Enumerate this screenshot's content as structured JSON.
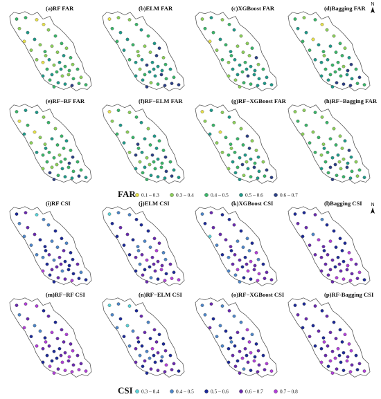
{
  "north_letter": "N",
  "region_outline_color": "#555555",
  "dot_stroke_color": "#444444",
  "far": {
    "legend_title": "FAR",
    "classes": [
      {
        "label": "0.1 – 0.3",
        "color": "#e8e24a"
      },
      {
        "label": "0.3 – 0.4",
        "color": "#8cd05a"
      },
      {
        "label": "0.4 – 0.5",
        "color": "#3ab66a"
      },
      {
        "label": "0.5 – 0.6",
        "color": "#1f9a8a"
      },
      {
        "label": "0.6 – 0.7",
        "color": "#2b3f86"
      }
    ],
    "panels": [
      {
        "title": "(a)RF FAR"
      },
      {
        "title": "(b)ELM FAR"
      },
      {
        "title": "(c)XGBoost FAR"
      },
      {
        "title": "(d)Bagging FAR"
      },
      {
        "title": "(e)RF−RF FAR"
      },
      {
        "title": "(f)RF−ELM FAR"
      },
      {
        "title": "(g)RF−XGBoost FAR"
      },
      {
        "title": "(h)RF−Bagging FAR"
      }
    ]
  },
  "csi": {
    "legend_title": "CSI",
    "classes": [
      {
        "label": "0.3 – 0.4",
        "color": "#5ad2d8"
      },
      {
        "label": "0.4 – 0.5",
        "color": "#4e86c8"
      },
      {
        "label": "0.5 – 0.6",
        "color": "#1c2a98"
      },
      {
        "label": "0.6 – 0.7",
        "color": "#6a2ab0"
      },
      {
        "label": "0.7 – 0.8",
        "color": "#b040d8"
      }
    ],
    "panels": [
      {
        "title": "(i)RF CSI"
      },
      {
        "title": "(j)ELM CSI"
      },
      {
        "title": "(k)XGBoost CSI"
      },
      {
        "title": "(l)Bagging CSI"
      },
      {
        "title": "(m)RF−RF CSI"
      },
      {
        "title": "(n)RF−ELM CSI"
      },
      {
        "title": "(o)RF−XGBoost CSI"
      },
      {
        "title": "(p)RF-Bagging CSI"
      }
    ]
  }
}
